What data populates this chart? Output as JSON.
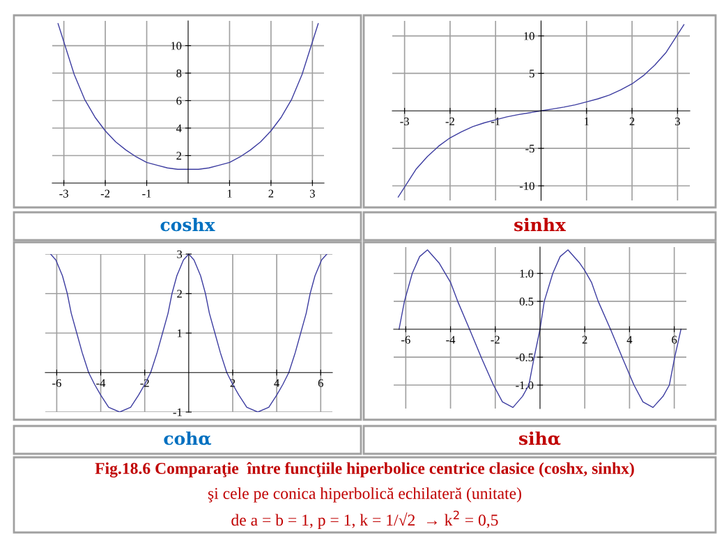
{
  "chart_data": [
    {
      "type": "line",
      "title": "coshx",
      "xlim": [
        -3.28,
        3.28
      ],
      "ylim": [
        0,
        11.8
      ],
      "xticks": [
        -3,
        -2,
        -1,
        1,
        2,
        3
      ],
      "yticks": [
        2,
        4,
        6,
        8,
        10
      ],
      "grid": true,
      "series": [
        {
          "color": "#3c3ca0",
          "x": [
            -3.14,
            -2.75,
            -2.5,
            -2.25,
            -2,
            -1.75,
            -1.5,
            -1.25,
            -1,
            -0.75,
            -0.5,
            -0.25,
            0,
            0.25,
            0.5,
            0.75,
            1,
            1.25,
            1.5,
            1.75,
            2,
            2.25,
            2.5,
            2.75,
            3.14
          ],
          "values": [
            11.6,
            7.9,
            6.1,
            4.8,
            3.8,
            3.0,
            2.4,
            1.9,
            1.5,
            1.3,
            1.1,
            1.0,
            1.0,
            1.0,
            1.1,
            1.3,
            1.5,
            1.9,
            2.4,
            3.0,
            3.8,
            4.8,
            6.1,
            7.9,
            11.6
          ]
        }
      ]
    },
    {
      "type": "line",
      "title": "sinhx",
      "xlim": [
        -3.27,
        3.27
      ],
      "ylim": [
        -11.95,
        12.0
      ],
      "xticks": [
        -3,
        -2,
        -1,
        1,
        2,
        3
      ],
      "yticks": [
        -10,
        -5,
        5,
        10
      ],
      "grid": true,
      "series": [
        {
          "color": "#3c3ca0",
          "x": [
            -3.14,
            -2.75,
            -2.5,
            -2.25,
            -2,
            -1.75,
            -1.5,
            -1.25,
            -1,
            -0.75,
            -0.5,
            -0.25,
            0,
            0.25,
            0.5,
            0.75,
            1,
            1.25,
            1.5,
            1.75,
            2,
            2.25,
            2.5,
            2.75,
            3.14
          ],
          "values": [
            -11.5,
            -7.8,
            -6.1,
            -4.7,
            -3.6,
            -2.8,
            -2.1,
            -1.6,
            -1.2,
            -0.8,
            -0.5,
            -0.25,
            0,
            0.25,
            0.5,
            0.8,
            1.2,
            1.6,
            2.1,
            2.8,
            3.6,
            4.7,
            6.1,
            7.8,
            11.5
          ]
        }
      ]
    },
    {
      "type": "line",
      "title": "cohα",
      "xlim": [
        -6.52,
        6.53
      ],
      "ylim": [
        -1,
        3
      ],
      "xticks": [
        -6,
        -4,
        -2,
        2,
        4,
        6
      ],
      "yticks": [
        -1,
        1,
        2,
        3
      ],
      "grid": true,
      "series": [
        {
          "color": "#3c3ca0",
          "x": [
            -6.28,
            -6.04,
            -5.74,
            -5.52,
            -5.34,
            -5.09,
            -4.84,
            -4.55,
            -4.28,
            -4.0,
            -3.64,
            -3.14,
            -2.64,
            -2.28,
            -2.0,
            -1.73,
            -1.44,
            -1.19,
            -0.94,
            -0.76,
            -0.54,
            -0.24,
            0,
            0.24,
            0.54,
            0.76,
            0.94,
            1.19,
            1.44,
            1.73,
            2.0,
            2.28,
            2.64,
            3.14,
            3.64,
            4.0,
            4.28,
            4.55,
            4.84,
            5.09,
            5.34,
            5.52,
            5.74,
            6.04,
            6.28
          ],
          "values": [
            3,
            2.85,
            2.45,
            2,
            1.5,
            1,
            0.5,
            0,
            -0.3,
            -0.57,
            -0.88,
            -1,
            -0.88,
            -0.57,
            -0.3,
            0,
            0.5,
            1,
            1.5,
            2,
            2.45,
            2.85,
            3,
            2.85,
            2.45,
            2,
            1.5,
            1,
            0.5,
            0,
            -0.3,
            -0.57,
            -0.88,
            -1,
            -0.88,
            -0.57,
            -0.3,
            0,
            0.5,
            1,
            1.5,
            2,
            2.45,
            2.85,
            3
          ]
        }
      ]
    },
    {
      "type": "line",
      "title": "sihα",
      "xlim": [
        -6.54,
        6.54
      ],
      "ylim": [
        -1.42,
        1.47
      ],
      "xticks": [
        -6,
        -4,
        -2,
        2,
        4,
        6
      ],
      "yticks": [
        {
          "value": -1,
          "label": "-1.0"
        },
        {
          "value": -0.5,
          "label": "-0.5"
        },
        {
          "value": 0.5,
          "label": "0.5"
        },
        {
          "value": 1,
          "label": "1.0"
        }
      ],
      "grid": true,
      "series": [
        {
          "color": "#3c3ca0",
          "x": [
            -6.3,
            -6.06,
            -5.71,
            -5.38,
            -5.03,
            -4.5,
            -4.0,
            -3.68,
            -3.15,
            -2.63,
            -2.08,
            -1.68,
            -1.21,
            -0.78,
            -0.5,
            -0.26,
            0,
            0.19,
            0.57,
            0.9,
            1.25,
            1.78,
            2.0,
            2.3,
            2.6,
            3.15,
            3.67,
            4.2,
            4.6,
            5.05,
            5.5,
            5.78,
            6.02,
            6.3
          ],
          "values": [
            0,
            0.5,
            1.0,
            1.3,
            1.42,
            1.18,
            0.84,
            0.5,
            0,
            -0.5,
            -1.0,
            -1.3,
            -1.4,
            -1.2,
            -1.0,
            -0.5,
            0,
            0.5,
            1.0,
            1.3,
            1.42,
            1.18,
            1.05,
            0.84,
            0.5,
            0,
            -0.5,
            -1.0,
            -1.3,
            -1.4,
            -1.2,
            -1.0,
            -0.5,
            0
          ]
        }
      ]
    },
    {
      "type": "other",
      "annotations": [
        "Fig.18.6 Comparaţie  între funcţiile hiperbolice centrice clasice (coshx, sinhx)",
        "şi cele pe conica hiperbolică echilateră (unitate)",
        "de a = b = 1, p = 1, k = 1/√2  → k$^{2}$ = 0,5"
      ]
    }
  ]
}
